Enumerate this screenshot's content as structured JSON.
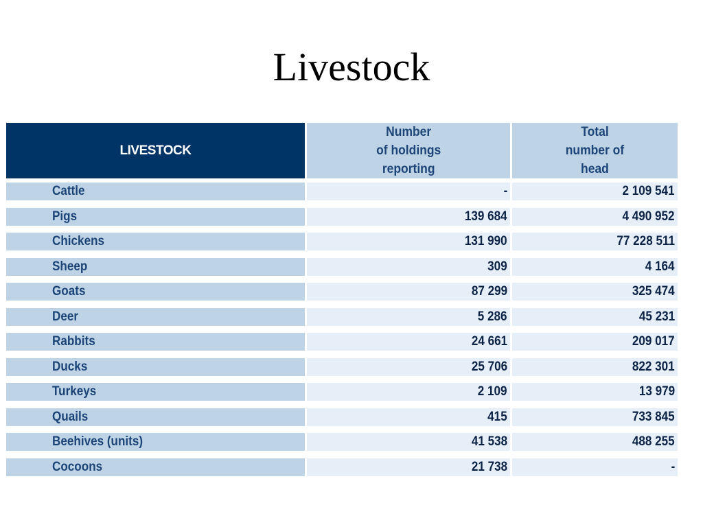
{
  "title": "Livestock",
  "table": {
    "headers": {
      "label": "LIVESTOCK",
      "holdings": "Number\nof holdings\nreporting",
      "head": "Total\nnumber of\nhead"
    },
    "rows": [
      {
        "label": "Cattle",
        "holdings": "-",
        "head": "2 109 541"
      },
      {
        "label": "Pigs",
        "holdings": "139 684",
        "head": "4 490 952"
      },
      {
        "label": "Chickens",
        "holdings": "131 990",
        "head": "77 228 511"
      },
      {
        "label": "Sheep",
        "holdings": "309",
        "head": "4 164"
      },
      {
        "label": "Goats",
        "holdings": "87 299",
        "head": "325 474"
      },
      {
        "label": "Deer",
        "holdings": "5 286",
        "head": "45 231"
      },
      {
        "label": "Rabbits",
        "holdings": "24 661",
        "head": "209 017"
      },
      {
        "label": "Ducks",
        "holdings": "25 706",
        "head": "822 301"
      },
      {
        "label": "Turkeys",
        "holdings": "2 109",
        "head": "13 979"
      },
      {
        "label": "Quails",
        "holdings": "415",
        "head": "733 845"
      },
      {
        "label": "Beehives (units)",
        "holdings": "41 538",
        "head": "488 255"
      },
      {
        "label": "Cocoons",
        "holdings": "21 738",
        "head": "-"
      }
    ]
  },
  "colors": {
    "header_dark": "#003366",
    "header_light": "#bed4e6",
    "row_label_bg": "#bed4e6",
    "row_value_bg": "#e6eef7",
    "text_blue": "#1d4477"
  }
}
